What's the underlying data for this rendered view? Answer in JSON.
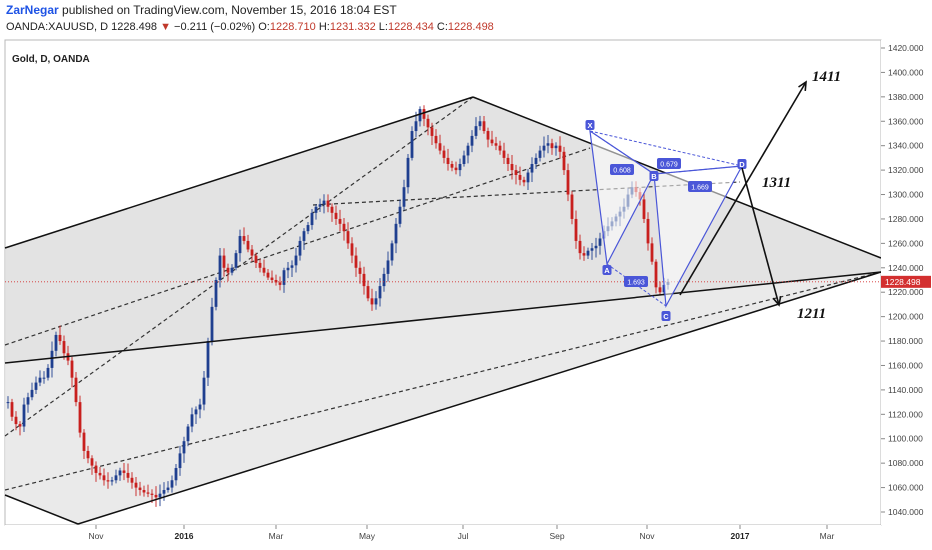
{
  "header": {
    "author": "ZarNegar",
    "published": " published on TradingView.com, November 15, 2016 18:04 EST",
    "symbol": "OANDA:XAUUSD, D",
    "last": "1228.498",
    "change": "−0.211 (−0.02%)",
    "o_label": "O:",
    "o_value": "1228.710",
    "h_label": "H:",
    "h_value": "1231.332",
    "l_label": "L:",
    "l_value": "1228.434",
    "c_label": "C:",
    "c_value": "1228.498"
  },
  "chart_data": {
    "type": "line",
    "title": "Gold, D, OANDA",
    "ylim": [
      1030,
      1425
    ],
    "y_ticks": [
      1040,
      1060,
      1080,
      1100,
      1120,
      1140,
      1160,
      1180,
      1200,
      1220,
      1240,
      1260,
      1280,
      1300,
      1320,
      1340,
      1360,
      1380,
      1400,
      1420
    ],
    "x_ticks": [
      {
        "label": "Nov",
        "bold": false
      },
      {
        "label": "2016",
        "bold": true
      },
      {
        "label": "Mar",
        "bold": false
      },
      {
        "label": "May",
        "bold": false
      },
      {
        "label": "Jul",
        "bold": false
      },
      {
        "label": "Sep",
        "bold": false
      },
      {
        "label": "Nov",
        "bold": false
      },
      {
        "label": "2017",
        "bold": true
      },
      {
        "label": "Mar",
        "bold": false
      }
    ],
    "last_price_label": "1228.498",
    "last_price": 1228.5,
    "colors": {
      "up": "#1f3f8f",
      "down": "#c8201e",
      "pattern": "#4a56d8",
      "last": "#d32f2f"
    },
    "series": [
      {
        "values": [
          1130,
          1118,
          1112,
          1110,
          1128,
          1134,
          1140,
          1146,
          1150,
          1150,
          1158,
          1172,
          1185,
          1180,
          1170,
          1164,
          1150,
          1130,
          1105,
          1090,
          1084,
          1078,
          1072,
          1070,
          1066,
          1065,
          1066,
          1070,
          1074,
          1072,
          1068,
          1064,
          1060,
          1058,
          1056,
          1055,
          1054,
          1052,
          1055,
          1058,
          1060,
          1066,
          1076,
          1088,
          1098,
          1110,
          1120,
          1124,
          1128,
          1150,
          1180,
          1208,
          1230,
          1250,
          1240,
          1236,
          1240,
          1252,
          1266,
          1262,
          1255,
          1250,
          1244,
          1240,
          1236,
          1232,
          1230,
          1228,
          1226,
          1238,
          1240,
          1242,
          1250,
          1262,
          1270,
          1275,
          1285,
          1290,
          1292,
          1295,
          1290,
          1285,
          1280,
          1276,
          1270,
          1260,
          1250,
          1240,
          1235,
          1225,
          1215,
          1210,
          1215,
          1225,
          1235,
          1246,
          1260,
          1276,
          1290,
          1306,
          1330,
          1352,
          1360,
          1370,
          1362,
          1355,
          1348,
          1342,
          1336,
          1330,
          1325,
          1322,
          1320,
          1325,
          1332,
          1340,
          1348,
          1356,
          1360,
          1352,
          1345,
          1342,
          1340,
          1336,
          1330,
          1325,
          1320,
          1316,
          1312,
          1310,
          1318,
          1325,
          1330,
          1336,
          1340,
          1342,
          1338,
          1340,
          1335,
          1320,
          1300,
          1280,
          1262,
          1252,
          1250,
          1254,
          1256,
          1258,
          1264,
          1270,
          1274,
          1278,
          1282,
          1286,
          1290,
          1300,
          1306,
          1302,
          1296,
          1280,
          1260,
          1245,
          1224,
          1220,
          1226,
          1228.5
        ]
      }
    ]
  },
  "annotations": {
    "lbl_1411": "1411",
    "lbl_1311": "1311",
    "lbl_1211": "1211",
    "pt_x": "X",
    "pt_a": "A",
    "pt_b": "B",
    "pt_c": "C",
    "pt_d": "D",
    "ratio_xb": "0.608",
    "ratio_ac": "0.679",
    "ratio_bd": "1.669",
    "ratio_bc": "1.693"
  }
}
